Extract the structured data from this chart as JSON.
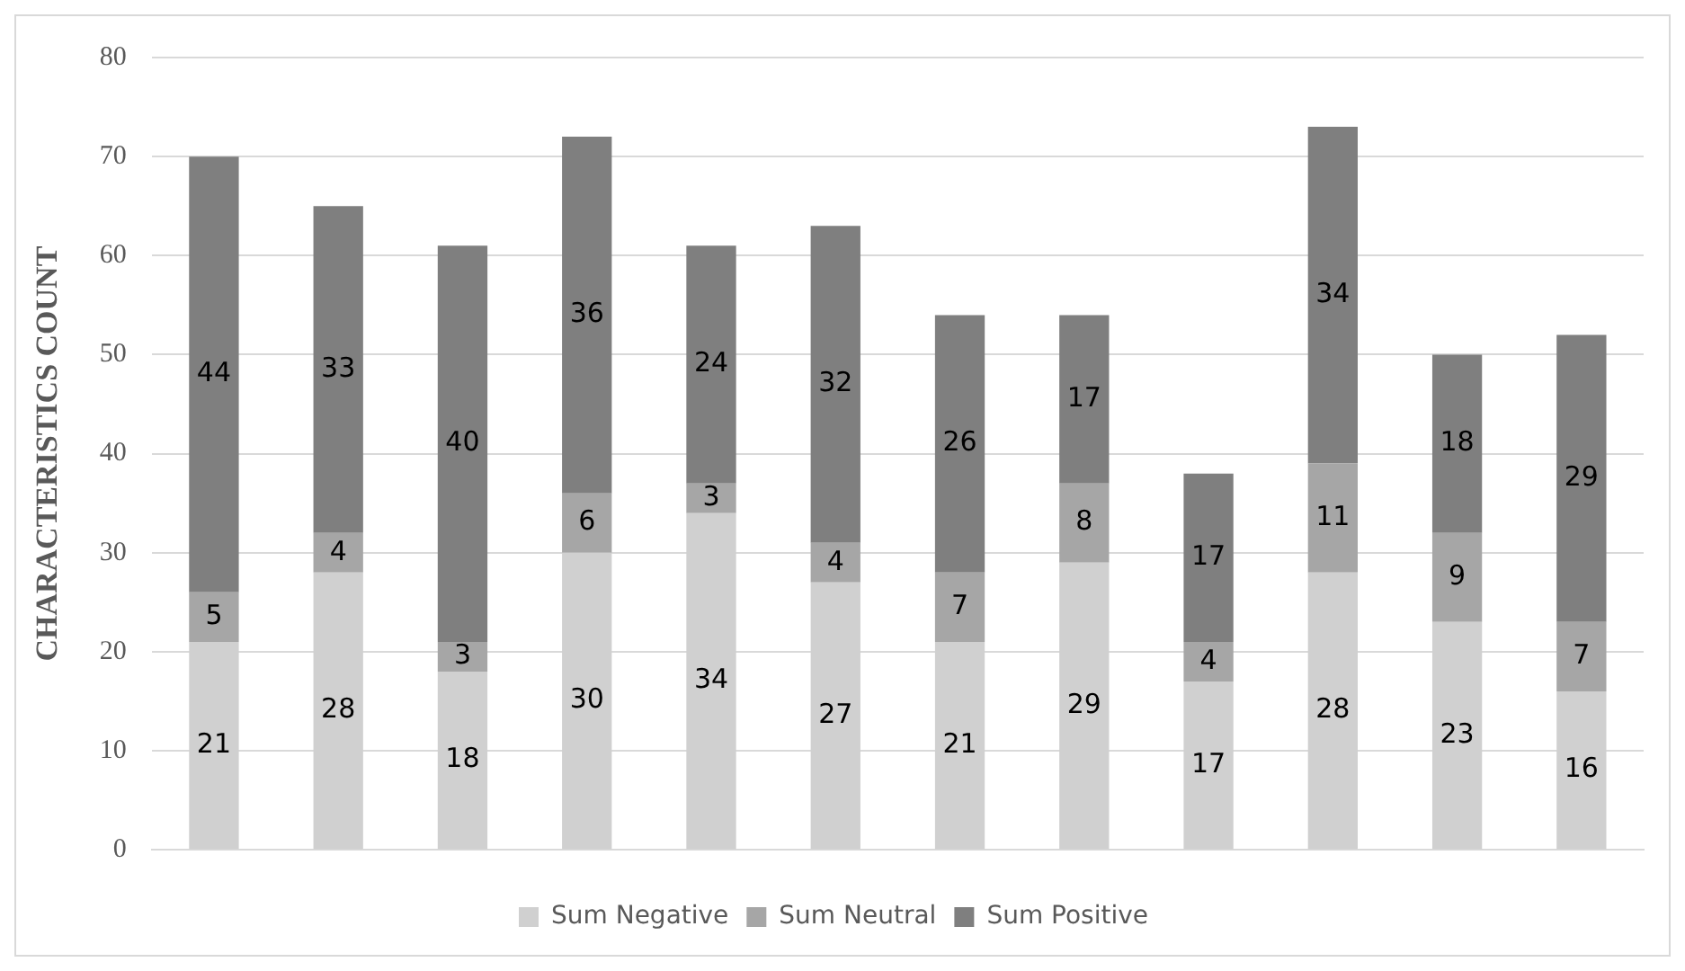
{
  "chart_data": {
    "type": "bar",
    "stacked": true,
    "ylabel": "CHARACTERISTICS COUNT",
    "categories": [
      null,
      null,
      null,
      null,
      null,
      null,
      null,
      null,
      null,
      null,
      null,
      null
    ],
    "series": [
      {
        "name": "Sum Negative",
        "color": "#d0d0d0",
        "values": [
          21,
          28,
          18,
          30,
          34,
          27,
          21,
          29,
          17,
          28,
          23,
          16
        ]
      },
      {
        "name": "Sum Neutral",
        "color": "#a6a6a6",
        "values": [
          5,
          4,
          3,
          6,
          3,
          4,
          7,
          8,
          4,
          11,
          9,
          7
        ]
      },
      {
        "name": "Sum Positive",
        "color": "#7f7f7f",
        "values": [
          44,
          33,
          40,
          36,
          24,
          32,
          26,
          17,
          17,
          34,
          18,
          29
        ]
      }
    ],
    "ylim": [
      0,
      80
    ],
    "yticks": [
      0,
      10,
      20,
      30,
      40,
      50,
      60,
      70,
      80
    ],
    "grid": "y",
    "legend": "bottom",
    "data_labels": true
  }
}
